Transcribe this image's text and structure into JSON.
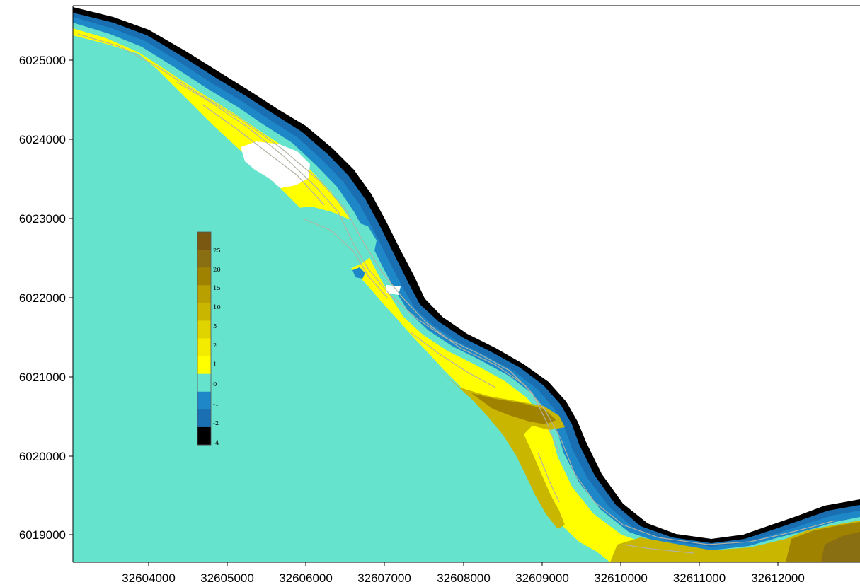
{
  "map": {
    "type": "elevation contour map",
    "palette": {
      "black": "#000000",
      "deep_blue": "#1a6fb3",
      "blue": "#1e87c8",
      "cyan": "#66e3cc",
      "yellow": "#ffff00",
      "yellow_2": "#f4ec00",
      "olive_light": "#e0d400",
      "olive": "#c9b600",
      "olive_dark": "#b8a000",
      "brown_light": "#9e8200",
      "brown": "#8a6e12",
      "brown_dark": "#7a5812",
      "contour": "#b3b3a3"
    }
  },
  "x_axis": {
    "ticks": [
      "32604000",
      "32605000",
      "32606000",
      "32607000",
      "32608000",
      "32609000",
      "32610000",
      "32611000",
      "32612000"
    ]
  },
  "y_axis": {
    "ticks": [
      "6025000",
      "6024000",
      "6023000",
      "6022000",
      "6021000",
      "6020000",
      "6019000"
    ]
  },
  "legend": {
    "labels": [
      "25",
      "20",
      "15",
      "10",
      "5",
      "2",
      "1",
      "0",
      "-1",
      "-2",
      "-4"
    ],
    "swatches": [
      "#7a5812",
      "#8a6e12",
      "#9e8200",
      "#b8a000",
      "#c9b600",
      "#e0d400",
      "#f4ec00",
      "#ffff00",
      "#66e3cc",
      "#1e87c8",
      "#1a6fb3",
      "#000000"
    ]
  }
}
